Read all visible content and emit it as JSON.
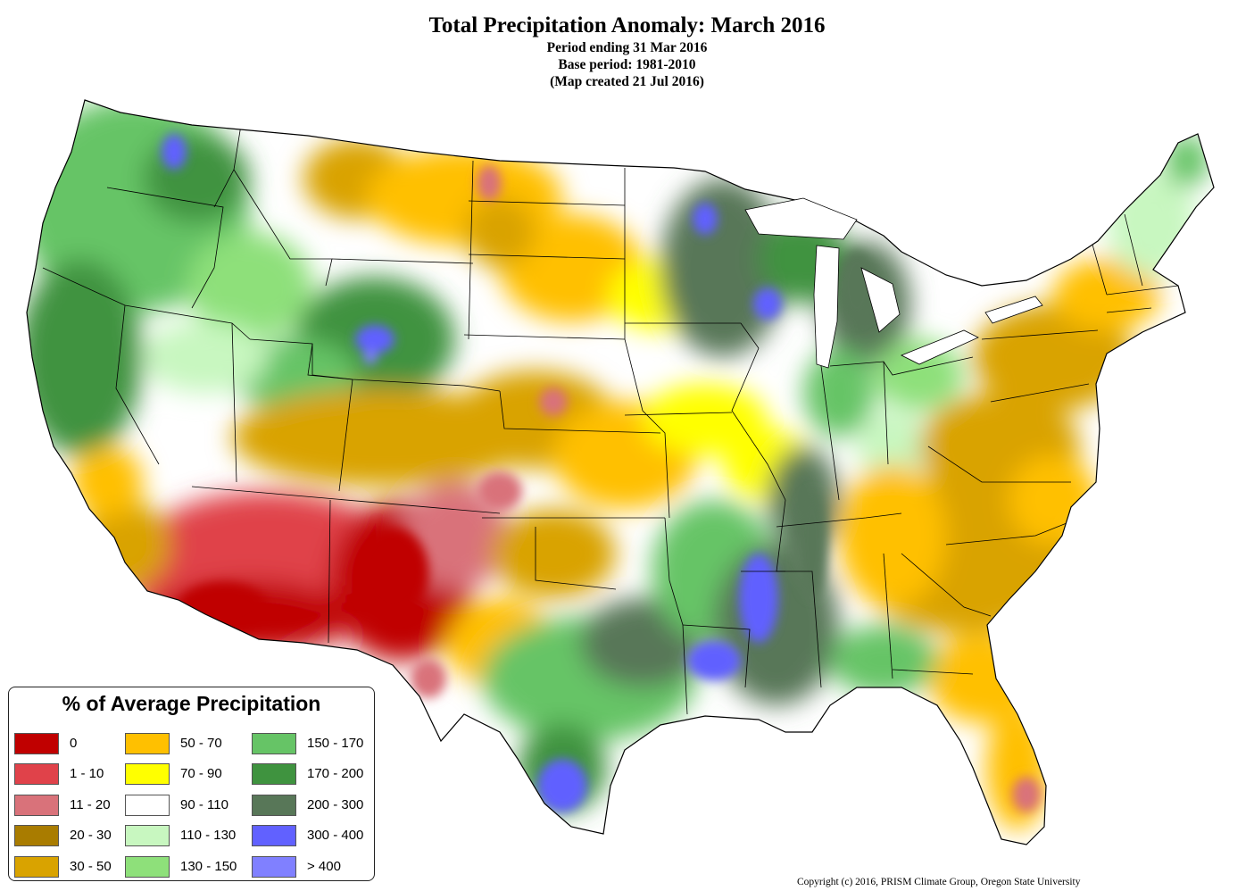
{
  "header": {
    "title": "Total Precipitation Anomaly: March 2016",
    "period": "Period ending 31 Mar 2016",
    "base": "Base period: 1981-2010",
    "created": "(Map created 21 Jul 2016)"
  },
  "legend": {
    "title": "% of Average Precipitation",
    "items": [
      {
        "label": "0",
        "color": "#c00000"
      },
      {
        "label": "1 - 10",
        "color": "#e0424a"
      },
      {
        "label": "11 - 20",
        "color": "#d9727a"
      },
      {
        "label": "20 - 30",
        "color": "#a97c00"
      },
      {
        "label": "30 - 50",
        "color": "#d9a300"
      },
      {
        "label": "50 - 70",
        "color": "#ffc000"
      },
      {
        "label": "70 - 90",
        "color": "#ffff00"
      },
      {
        "label": "90 - 110",
        "color": "#ffffff"
      },
      {
        "label": "110 - 130",
        "color": "#c8f7c0"
      },
      {
        "label": "130 - 150",
        "color": "#8ee07a"
      },
      {
        "label": "150 - 170",
        "color": "#66c466"
      },
      {
        "label": "170 - 200",
        "color": "#3f933f"
      },
      {
        "label": "200 - 300",
        "color": "#587758"
      },
      {
        "label": "300 - 400",
        "color": "#6161ff"
      },
      {
        "label": "> 400",
        "color": "#8080ff"
      }
    ]
  },
  "copyright": "Copyright (c) 2016, PRISM Climate Group, Oregon State University"
}
